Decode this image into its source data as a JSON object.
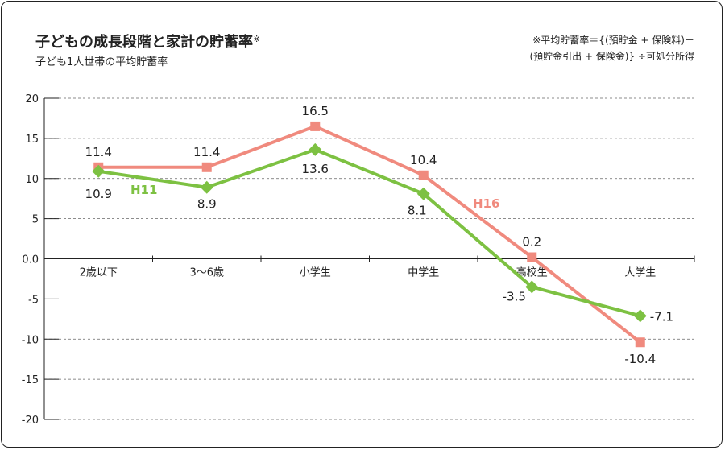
{
  "title": "子どもの成長段階と家計の貯蓄率",
  "title_mark": "※",
  "subtitle": "子ども1人世帯の平均貯蓄率",
  "note": {
    "line1": "※平均貯蓄率＝{(預貯金 + 保険料)－",
    "line2": "(預貯金引出 + 保険金)} ÷可処分所得"
  },
  "chart_data": {
    "type": "line",
    "title": "子どもの成長段階と家計の貯蓄率",
    "xlabel": "",
    "ylabel": "",
    "ylim": [
      -20,
      20
    ],
    "yticks": [
      20,
      15,
      10,
      5,
      0.0,
      -5,
      -10,
      -15,
      -20
    ],
    "ytick_labels": [
      "20",
      "15",
      "10",
      "5",
      "0.0",
      "-5",
      "-10",
      "-15",
      "-20"
    ],
    "grid": "dashed horizontal",
    "categories": [
      "2歳以下",
      "3～6歳",
      "小学生",
      "中学生",
      "高校生",
      "大学生"
    ],
    "series": [
      {
        "name": "H11",
        "color": "#7dc142",
        "marker": "diamond",
        "values": [
          10.9,
          8.9,
          13.6,
          8.1,
          -3.5,
          -7.1
        ],
        "labels": [
          "10.9",
          "8.9",
          "13.6",
          "8.1",
          "-3.5",
          "-7.1"
        ]
      },
      {
        "name": "H16",
        "color": "#f08a7e",
        "marker": "square",
        "values": [
          11.4,
          11.4,
          16.5,
          10.4,
          0.2,
          -10.4
        ],
        "labels": [
          "11.4",
          "11.4",
          "16.5",
          "10.4",
          "0.2",
          "-10.4"
        ]
      }
    ]
  }
}
